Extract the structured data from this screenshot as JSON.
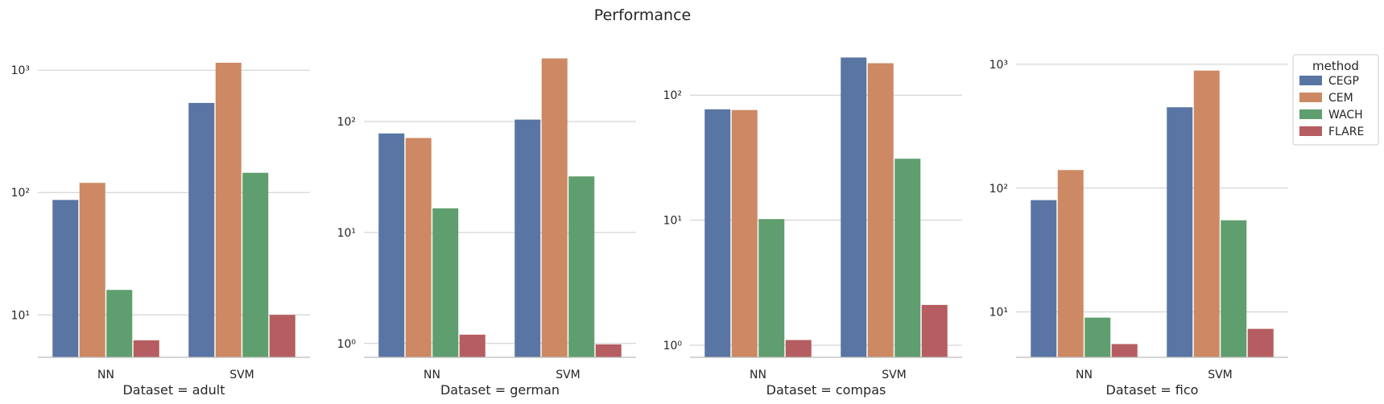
{
  "figure": {
    "title": "Performance"
  },
  "colors": {
    "CEGP": "#5875a4",
    "CEM": "#cc8963",
    "WACH": "#5f9e6e",
    "FLARE": "#b55d60",
    "grid": "#cccccc",
    "axis": "#bbbbbb"
  },
  "legend": {
    "title": "method",
    "items": [
      "CEGP",
      "CEM",
      "WACH",
      "FLARE"
    ],
    "placement": "right, outside last panel"
  },
  "chart_data": [
    {
      "type": "bar",
      "scale": "log",
      "xlabel": "Dataset = adult",
      "categories": [
        "NN",
        "SVM"
      ],
      "ylim": [
        4.5,
        1400
      ],
      "yticks": [
        10,
        100,
        1000
      ],
      "series": [
        {
          "name": "CEGP",
          "values": [
            87,
            540
          ]
        },
        {
          "name": "CEM",
          "values": [
            120,
            1150
          ]
        },
        {
          "name": "WACH",
          "values": [
            16,
            145
          ]
        },
        {
          "name": "FLARE",
          "values": [
            6.2,
            10
          ]
        }
      ]
    },
    {
      "type": "bar",
      "scale": "log",
      "xlabel": "Dataset = german",
      "categories": [
        "NN",
        "SVM"
      ],
      "ylim": [
        0.75,
        420
      ],
      "yticks": [
        1,
        10,
        100
      ],
      "series": [
        {
          "name": "CEGP",
          "values": [
            78,
            104
          ]
        },
        {
          "name": "CEM",
          "values": [
            71,
            370
          ]
        },
        {
          "name": "WACH",
          "values": [
            16.5,
            32
          ]
        },
        {
          "name": "FLARE",
          "values": [
            1.2,
            0.98
          ]
        }
      ]
    },
    {
      "type": "bar",
      "scale": "log",
      "xlabel": "Dataset = compas",
      "categories": [
        "NN",
        "SVM"
      ],
      "ylim": [
        0.8,
        220
      ],
      "yticks": [
        1,
        10,
        100
      ],
      "series": [
        {
          "name": "CEGP",
          "values": [
            77,
            200
          ]
        },
        {
          "name": "CEM",
          "values": [
            76,
            180
          ]
        },
        {
          "name": "WACH",
          "values": [
            10.2,
            31
          ]
        },
        {
          "name": "FLARE",
          "values": [
            1.1,
            2.1
          ]
        }
      ]
    },
    {
      "type": "bar",
      "scale": "log",
      "xlabel": "Dataset = fico",
      "categories": [
        "NN",
        "SVM"
      ],
      "ylim": [
        4.3,
        1250
      ],
      "yticks": [
        10,
        100,
        1000
      ],
      "series": [
        {
          "name": "CEGP",
          "values": [
            80,
            450
          ]
        },
        {
          "name": "CEM",
          "values": [
            140,
            890
          ]
        },
        {
          "name": "WACH",
          "values": [
            9,
            55
          ]
        },
        {
          "name": "FLARE",
          "values": [
            5.5,
            7.3
          ]
        }
      ]
    }
  ]
}
